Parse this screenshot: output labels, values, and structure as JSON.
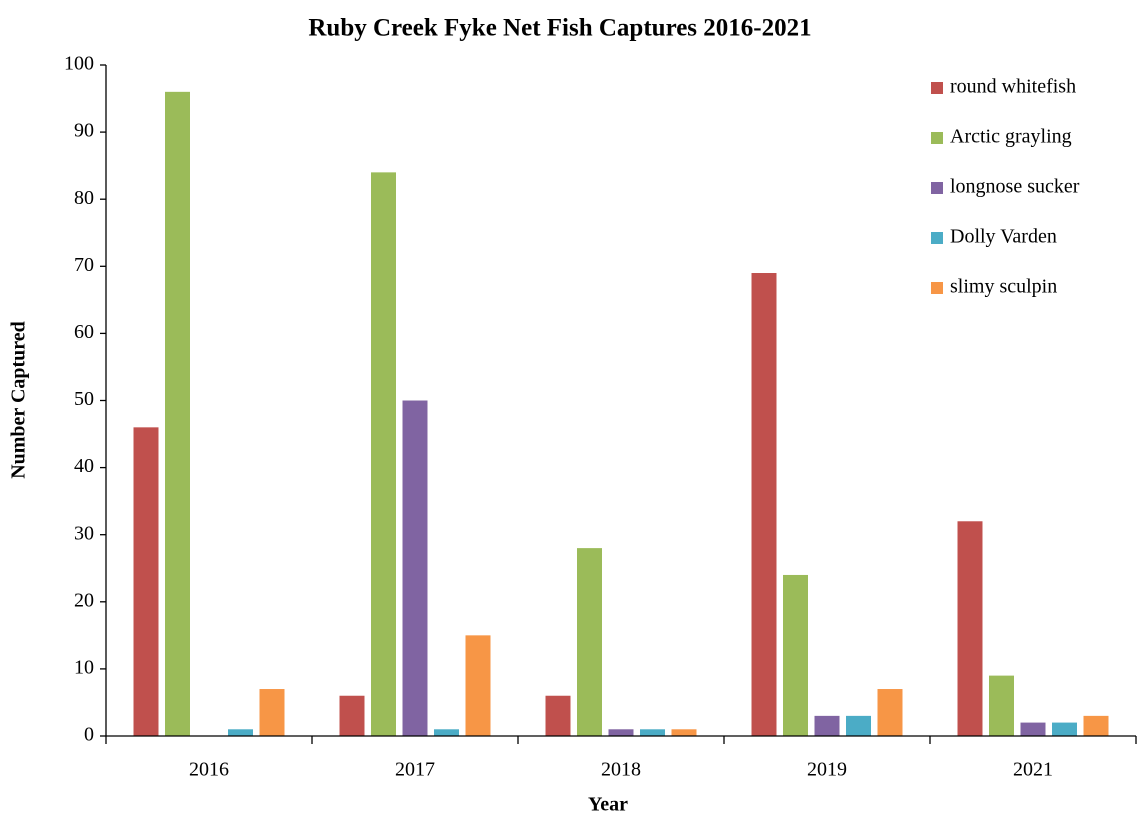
{
  "chart_data": {
    "type": "bar",
    "title": "Ruby Creek Fyke Net Fish Captures 2016-2021",
    "x_label": "Year",
    "y_label": "Number Captured",
    "categories": [
      "2016",
      "2017",
      "2018",
      "2019",
      "2021"
    ],
    "series": [
      {
        "name": "round whitefish",
        "color": "#c0504d",
        "values": [
          46,
          6,
          6,
          69,
          32
        ]
      },
      {
        "name": "Arctic grayling",
        "color": "#9bbb59",
        "values": [
          96,
          84,
          28,
          24,
          9
        ]
      },
      {
        "name": "longnose sucker",
        "color": "#8064a2",
        "values": [
          0,
          50,
          1,
          3,
          2
        ]
      },
      {
        "name": "Dolly Varden",
        "color": "#4bacc6",
        "values": [
          1,
          1,
          1,
          3,
          2
        ]
      },
      {
        "name": "slimy sculpin",
        "color": "#f79646",
        "values": [
          7,
          15,
          1,
          7,
          3
        ]
      }
    ],
    "ylim": [
      0,
      100
    ],
    "yticks": [
      0,
      10,
      20,
      30,
      40,
      50,
      60,
      70,
      80,
      90,
      100
    ],
    "grid": false,
    "legend": "top-right"
  }
}
